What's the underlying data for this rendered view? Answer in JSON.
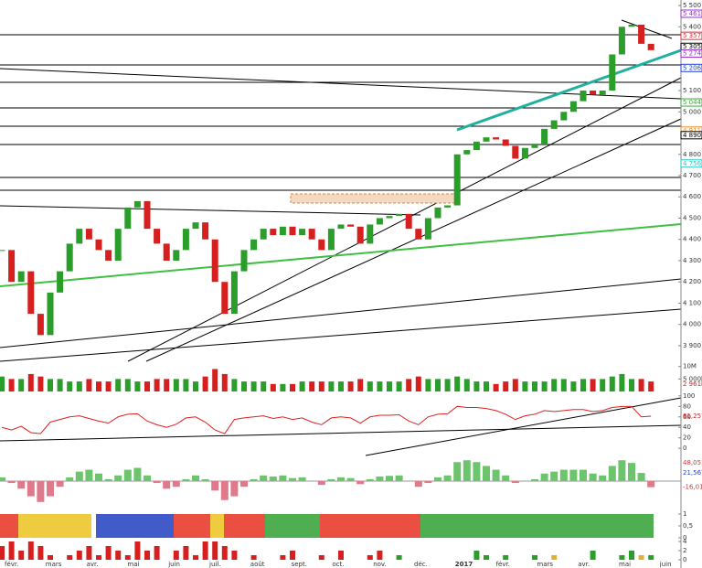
{
  "chart_data": {
    "type": "candlestick",
    "title": "",
    "price": {
      "values": [
        4350,
        4200,
        4250,
        4050,
        3950,
        4150,
        4250,
        4380,
        4450,
        4400,
        4350,
        4300,
        4450,
        4550,
        4580,
        4450,
        4380,
        4300,
        4350,
        4450,
        4480,
        4400,
        4200,
        4050,
        4250,
        4350,
        4400,
        4450,
        4420,
        4460,
        4420,
        4450,
        4400,
        4350,
        4450,
        4470,
        4460,
        4380,
        4470,
        4500,
        4510,
        4520,
        4450,
        4400,
        4500,
        4550,
        4560,
        4800,
        4820,
        4860,
        4880,
        4870,
        4840,
        4780,
        4830,
        4850,
        4920,
        4960,
        5000,
        5050,
        5100,
        5080,
        5100,
        5270,
        5400,
        5410,
        5320,
        5290
      ],
      "ylim": [
        3874,
        5526
      ],
      "yticks": [
        {
          "value": 5500,
          "label": "5 500"
        },
        {
          "value": 5400,
          "label": "5 400"
        },
        {
          "value": 5100,
          "label": "5 100"
        },
        {
          "value": 5000,
          "label": "5 000"
        },
        {
          "value": 4800,
          "label": "4 800"
        },
        {
          "value": 4700,
          "label": "4 700"
        },
        {
          "value": 4600,
          "label": "4 600"
        },
        {
          "value": 4500,
          "label": "4 500"
        },
        {
          "value": 4400,
          "label": "4 400"
        },
        {
          "value": 4300,
          "label": "4 300"
        },
        {
          "value": 4200,
          "label": "4 200"
        },
        {
          "value": 4100,
          "label": "4 100"
        },
        {
          "value": 4000,
          "label": "4 000"
        },
        {
          "value": 3900,
          "label": "3 900"
        }
      ],
      "tags": [
        {
          "value": 5461.46,
          "label": "5 461,46",
          "color": "#9b30c8"
        },
        {
          "value": 5357.61,
          "label": "5 357,61",
          "color": "#e0303a"
        },
        {
          "value": 5305.56,
          "label": "5 305,56",
          "color": "#000000"
        },
        {
          "value": 5274.14,
          "label": "5 274,14",
          "color": "#9b30c8"
        },
        {
          "value": 5206.39,
          "label": "5 206,39",
          "color": "#2040e0"
        },
        {
          "value": 5044.08,
          "label": "5 044,08",
          "color": "#30b030"
        },
        {
          "value": 4911.63,
          "label": "4 911,63",
          "color": "#f08a20"
        },
        {
          "value": 4890.11,
          "label": "4 890,11",
          "color": "#000000"
        },
        {
          "value": 4756.9,
          "label": "4 756,9",
          "color": "#20c8c8"
        }
      ]
    },
    "volume": {
      "values": [
        6,
        5,
        5,
        7,
        6,
        5,
        5,
        4,
        4,
        5,
        4,
        4,
        5,
        5,
        4,
        4,
        5,
        5,
        5,
        5,
        4,
        6,
        9,
        7,
        5,
        4,
        4,
        4,
        3,
        3,
        3,
        4,
        4,
        4,
        4,
        4,
        4,
        5,
        4,
        4,
        4,
        4,
        5,
        6,
        5,
        5,
        5,
        6,
        5,
        4,
        4,
        3,
        4,
        5,
        4,
        4,
        4,
        5,
        5,
        4,
        5,
        5,
        5,
        6,
        7,
        5,
        5,
        4
      ],
      "ylim": [
        0,
        11
      ],
      "yticks": [
        {
          "value": 10,
          "label": "10M"
        },
        {
          "value": 5,
          "label": "5 000k"
        }
      ],
      "tag": {
        "value": 2.961,
        "label": "2 961k"
      }
    },
    "rsi": {
      "values": [
        40,
        35,
        42,
        30,
        28,
        50,
        55,
        60,
        62,
        57,
        52,
        48,
        60,
        65,
        66,
        52,
        45,
        40,
        46,
        58,
        60,
        50,
        35,
        28,
        55,
        58,
        60,
        62,
        57,
        60,
        55,
        58,
        50,
        45,
        58,
        60,
        58,
        48,
        60,
        63,
        63,
        64,
        52,
        45,
        60,
        65,
        66,
        80,
        78,
        78,
        76,
        72,
        65,
        55,
        62,
        65,
        72,
        70,
        72,
        74,
        74,
        70,
        72,
        78,
        80,
        80,
        60,
        61.257
      ],
      "ylim": [
        -5,
        105
      ],
      "yticks": [
        100,
        80,
        60,
        40,
        20,
        0
      ],
      "tag": {
        "value": 61.257,
        "label": "61,257"
      }
    },
    "macd": {
      "values": [
        10,
        -5,
        -20,
        -40,
        -55,
        -40,
        -15,
        10,
        25,
        30,
        20,
        5,
        15,
        30,
        35,
        15,
        -5,
        -20,
        -15,
        5,
        15,
        5,
        -25,
        -50,
        -40,
        -15,
        5,
        15,
        12,
        15,
        8,
        10,
        0,
        -10,
        5,
        10,
        8,
        -8,
        5,
        12,
        14,
        15,
        0,
        -15,
        -5,
        10,
        15,
        50,
        55,
        50,
        40,
        30,
        15,
        -5,
        0,
        5,
        20,
        25,
        30,
        30,
        30,
        20,
        15,
        40,
        55,
        48,
        21.567,
        -16.014
      ],
      "tags": [
        {
          "value": 48.051,
          "label": "48,051",
          "color": "#e0303a"
        },
        {
          "value": 21.567,
          "label": "21,567",
          "color": "#2040e0"
        },
        {
          "value": -16.014,
          "label": "-16,014",
          "color": "#e0303a"
        }
      ]
    },
    "ticks_band": [
      1,
      {
        "value": 0.5,
        "label": "0,5"
      },
      0
    ],
    "signals": {
      "values": [
        3,
        4,
        2,
        4,
        3,
        1,
        0,
        1,
        2,
        3,
        1,
        3,
        2,
        1,
        4,
        2,
        3,
        0,
        2,
        3,
        1,
        4,
        4,
        3,
        2,
        0,
        1,
        0,
        0,
        1,
        2,
        0,
        0,
        1,
        0,
        2,
        0,
        0,
        1,
        2,
        0,
        1,
        0,
        0,
        0,
        0,
        0,
        0,
        0,
        2,
        1,
        0,
        1,
        0,
        0,
        1,
        0,
        1,
        0,
        0,
        0,
        2,
        0,
        0,
        1,
        2,
        1,
        1
      ],
      "yticks": [
        4,
        2,
        0
      ]
    },
    "categories": [
      "févr.",
      "mars",
      "avr.",
      "mai",
      "juin",
      "juil.",
      "août",
      "sept.",
      "oct.",
      "nov.",
      "déc.",
      "2017",
      "févr.",
      "mars",
      "avr.",
      "mai",
      "juin"
    ]
  }
}
